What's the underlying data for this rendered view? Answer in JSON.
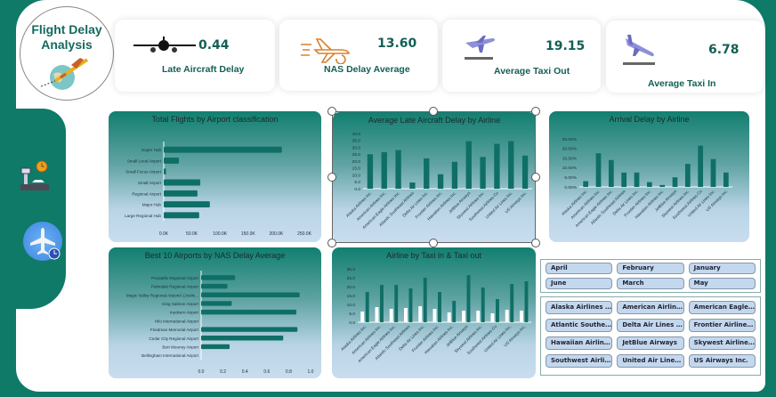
{
  "header": {
    "title_line1": "Flight Delay",
    "title_line2": "Analysis"
  },
  "kpis": [
    {
      "value": "0.44",
      "label": "Late Aircraft Delay",
      "icon": "airplane-front-icon"
    },
    {
      "value": "13.60",
      "label": "NAS Delay Average",
      "icon": "airplane-delay-icon"
    },
    {
      "value": "19.15",
      "label": "Average Taxi Out",
      "icon": "airplane-takeoff-icon"
    },
    {
      "value": "6.78",
      "label": "Average Taxi In",
      "icon": "airplane-landing-icon"
    }
  ],
  "sidebar": {
    "icons": [
      "airport-clock-icon",
      "flight-time-icon"
    ]
  },
  "colors": {
    "bar": "#0f6f66",
    "bar_light": "#ffffff",
    "teal": "#0f7a68",
    "slicer_button": "#c3d8ee"
  },
  "chart_data": [
    {
      "id": "flights",
      "type": "bar",
      "orientation": "horizontal",
      "title": "Total Flights by Airport classification",
      "categories": [
        "Super Hub",
        "Small Local Airport",
        "Small Focus Airport",
        "Small Airport",
        "Regional Airport",
        "Major Hub",
        "Large Regional Hub"
      ],
      "values": [
        210000,
        27000,
        4000,
        65000,
        60000,
        82000,
        63000
      ],
      "xlim": [
        0,
        250000
      ],
      "ticks": [
        "0.0K",
        "50.0K",
        "100.0K",
        "150.0K",
        "200.0K",
        "250.0K"
      ]
    },
    {
      "id": "late",
      "type": "bar",
      "title": "Average Late Aircraft Delay by Airline",
      "categories": [
        "Alaska Airlines Inc.",
        "American Airlines Inc.",
        "American Eagle Airlines Inc.",
        "Atlantic Southeast Airlines",
        "Delta Air Lines Inc.",
        "Frontier Airlines Inc.",
        "Hawaiian Airlines Inc.",
        "JetBlue Airways",
        "Skywest Airlines Inc.",
        "Southwest Airlines Co",
        "United Air Lines Inc.",
        "US Airways Inc."
      ],
      "values": [
        25,
        26.5,
        28,
        4.5,
        22,
        10.5,
        19.5,
        34.5,
        23,
        32.5,
        34.5,
        24
      ],
      "ylim": [
        0,
        40
      ],
      "ticks": [
        "0.0",
        "5.0",
        "10.0",
        "15.0",
        "20.0",
        "25.0",
        "30.0",
        "35.0",
        "40.0"
      ]
    },
    {
      "id": "arrival",
      "type": "bar",
      "title": "Arrival Delay by Airline",
      "categories": [
        "Alaska Airlines Inc.",
        "American Airlines Inc.",
        "American Eagle Airlines Inc.",
        "Atlantic Southeast Airlines",
        "Delta Air Lines Inc.",
        "Frontier Airlines Inc.",
        "Hawaiian Airlines Inc.",
        "JetBlue Airways",
        "Skywest Airlines Inc.",
        "Southwest Airlines Co",
        "United Air Lines Inc.",
        "US Airways Inc."
      ],
      "values": [
        3,
        17.5,
        14,
        7.5,
        7.5,
        2.5,
        1,
        5,
        12,
        21.5,
        14.5,
        7.5
      ],
      "ylim": [
        0,
        25
      ],
      "ticks": [
        "0.00%",
        "5.00%",
        "10.00%",
        "15.00%",
        "20.00%",
        "25.00%"
      ]
    },
    {
      "id": "nas",
      "type": "bar",
      "orientation": "horizontal",
      "title": "Best 10 Airports by NAS Delay Average",
      "categories": [
        "Pocatello Regional Airport",
        "Palmdale Regional Airport",
        "Magic Valley Regional AirportÂ (Joslin...",
        "King Salmon Airport",
        "Inyokern Airport",
        "Hilo International Airport",
        "Friedman Memorial Airport",
        "Cedar City Regional Airport",
        "Bert Mooney Airport",
        "Bellingham International Airport"
      ],
      "values": [
        0.31,
        0.24,
        0.9,
        0.28,
        0.87,
        0,
        0.88,
        0.75,
        0.26,
        0
      ],
      "xlim": [
        0,
        1
      ],
      "ticks": [
        "0.0",
        "0.2",
        "0.4",
        "0.6",
        "0.8",
        "1.0"
      ]
    },
    {
      "id": "taxi",
      "type": "bar",
      "title": "Airline by Taxi in & Taxi out",
      "categories": [
        "Alaska Airlines Inc.",
        "American Airlines Inc.",
        "American Eagle Airlines Inc.",
        "Atlantic Southeast Airlines",
        "Delta Air Lines Inc.",
        "Frontier Airlines Inc.",
        "Hawaiian Airlines Inc.",
        "JetBlue Airways",
        "Skywest Airlines Inc.",
        "Southwest Airlines Co",
        "United Air Lines Inc.",
        "US Airways Inc."
      ],
      "series": [
        {
          "values": [
            6,
            8.5,
            7.5,
            8,
            9,
            7.5,
            5.5,
            6.5,
            6.5,
            5,
            7,
            6.5
          ]
        },
        {
          "values": [
            17,
            21,
            21,
            19,
            25,
            17,
            12,
            26.5,
            19.5,
            13,
            21.5,
            23
          ]
        }
      ],
      "ylim": [
        0,
        30
      ],
      "ticks": [
        "0.0",
        "5.0",
        "10.0",
        "15.0",
        "20.0",
        "25.0",
        "30.0"
      ]
    }
  ],
  "slicers": {
    "months": [
      "April",
      "February",
      "January",
      "June",
      "March",
      "May"
    ],
    "airlines": [
      "Alaska Airlines Inc.",
      "American Airlines ...",
      "American Eagle Ai...",
      "Atlantic Southeas...",
      "Delta Air Lines Inc.",
      "Frontier Airlines Inc.",
      "Hawaiian Airlines I...",
      "JetBlue Airways",
      "Skywest Airlines Inc.",
      "Southwest Airline...",
      "United Air Lines Inc.",
      "US Airways Inc."
    ]
  }
}
